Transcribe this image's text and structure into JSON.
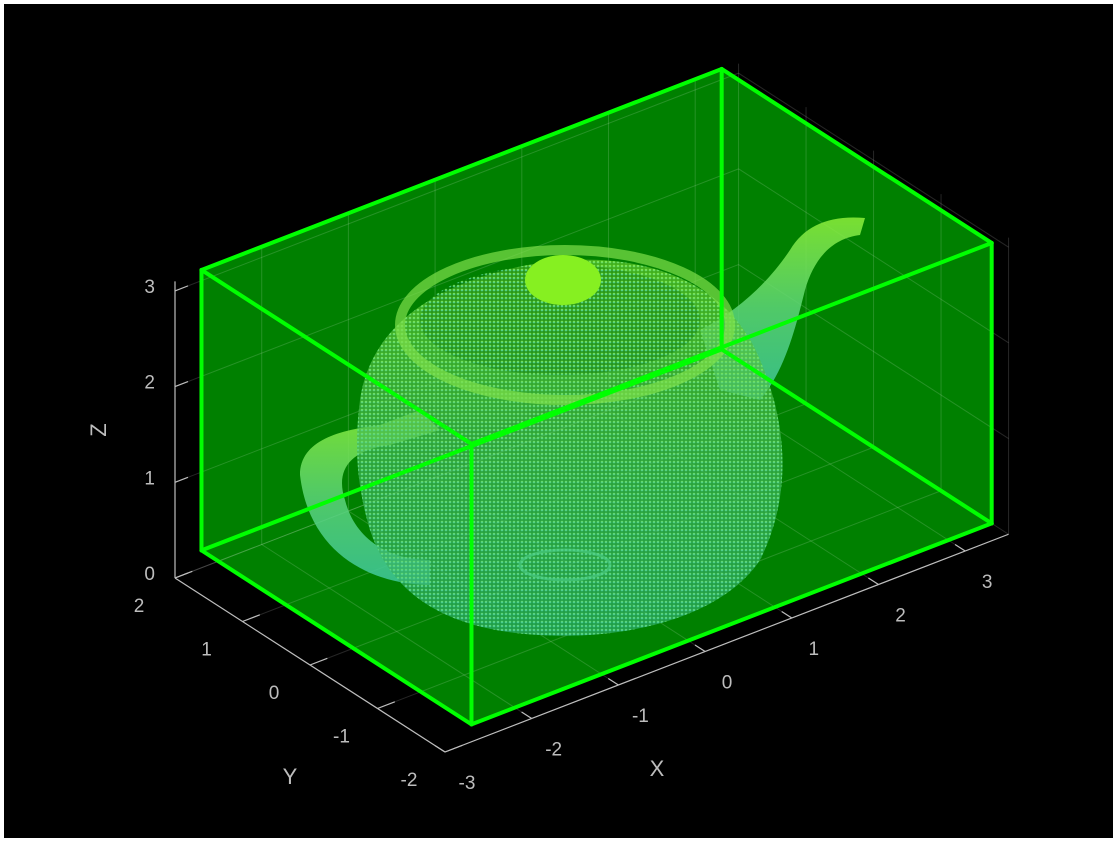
{
  "chart_data": {
    "type": "scatter3",
    "xlabel": "X",
    "ylabel": "Y",
    "zlabel": "Z",
    "xlim": [
      -3,
      3.5
    ],
    "ylim": [
      -2,
      2
    ],
    "zlim": [
      0,
      3.1
    ],
    "xticks": [
      -3,
      -2,
      -1,
      0,
      1,
      2,
      3
    ],
    "yticks": [
      -2,
      -1,
      0,
      1,
      2
    ],
    "zticks": [
      0,
      1,
      2,
      3
    ],
    "grid": true,
    "roi": {
      "x": [
        -2.5,
        3.5
      ],
      "y": [
        -1.75,
        2.25
      ],
      "z": [
        0,
        2.93
      ],
      "color": "#00ff00"
    }
  }
}
